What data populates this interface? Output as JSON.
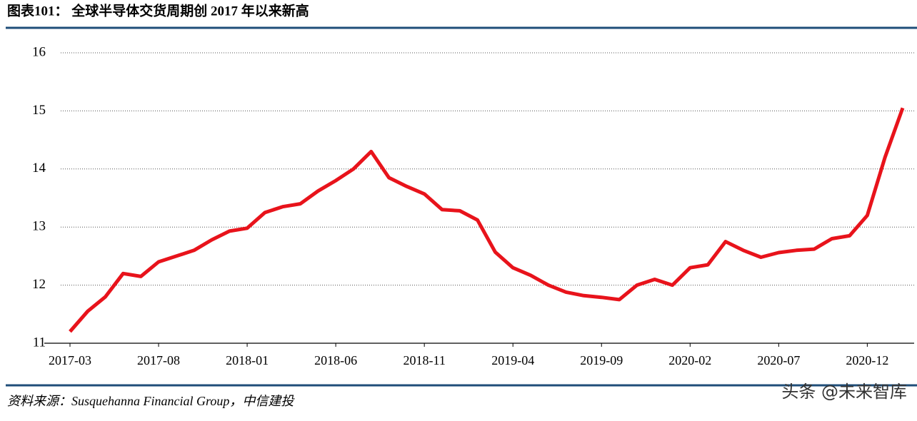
{
  "chart_data": {
    "type": "line",
    "title": "图表101：  全球半导体交货周期创 2017 年以来新高",
    "source": "资料来源：Susquehanna Financial Group，中信建投",
    "watermark": "头条 @未来智库",
    "categories": [
      "2017-03",
      null,
      null,
      null,
      null,
      "2017-08",
      null,
      null,
      null,
      null,
      "2018-01",
      null,
      null,
      null,
      null,
      "2018-06",
      null,
      null,
      null,
      null,
      "2018-11",
      null,
      null,
      null,
      null,
      "2019-04",
      null,
      null,
      null,
      null,
      "2019-09",
      null,
      null,
      null,
      null,
      "2020-02",
      null,
      null,
      null,
      null,
      "2020-07",
      null,
      null,
      null,
      null,
      "2020-12",
      null,
      null
    ],
    "series": [
      {
        "name": "交货周期",
        "color": "#e8131b",
        "values": [
          11.2,
          11.55,
          11.8,
          12.2,
          12.15,
          12.4,
          12.5,
          12.6,
          12.78,
          12.93,
          12.98,
          13.25,
          13.35,
          13.4,
          13.62,
          13.8,
          14.0,
          14.3,
          13.85,
          13.7,
          13.57,
          13.3,
          13.28,
          13.12,
          12.57,
          12.3,
          12.17,
          12.0,
          11.88,
          11.82,
          11.79,
          11.75,
          12.0,
          12.1,
          12.0,
          12.3,
          12.35,
          12.75,
          12.6,
          12.48,
          12.56,
          12.6,
          12.62,
          12.8,
          12.85,
          13.2,
          14.2,
          15.05
        ]
      }
    ],
    "ylim": [
      11,
      16
    ],
    "yticks": [
      11,
      12,
      13,
      14,
      15,
      16
    ],
    "grid": true
  }
}
